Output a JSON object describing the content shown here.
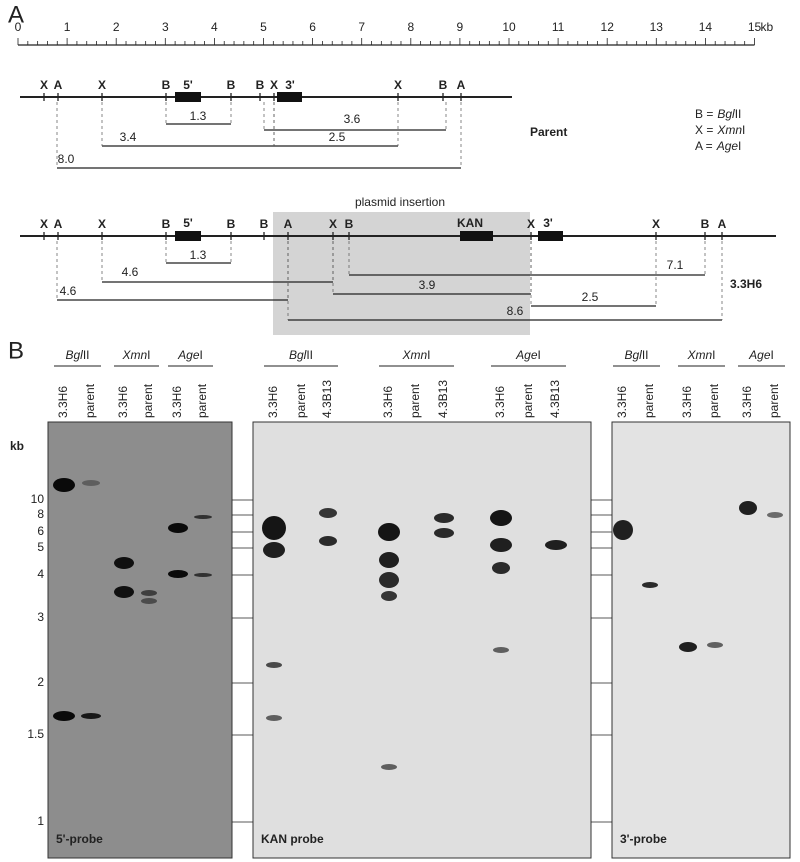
{
  "panel_a": {
    "label": "A",
    "scale": {
      "ticks": [
        0,
        1,
        2,
        3,
        4,
        5,
        6,
        7,
        8,
        9,
        10,
        11,
        12,
        13,
        14,
        15
      ],
      "unit": "kb"
    },
    "parent": {
      "name": "Parent",
      "sites": [
        "X",
        "A",
        "X",
        "B",
        "B",
        "B",
        "X",
        "X",
        "B",
        "A"
      ],
      "probes": [
        "5'",
        "3'"
      ],
      "fragments": [
        "1.3",
        "3.6",
        "3.4",
        "2.5",
        "8.0"
      ]
    },
    "legend": [
      {
        "key": "B =",
        "italic": "Bgl",
        "roman": "II"
      },
      {
        "key": "X =",
        "italic": "Xmn",
        "roman": "I"
      },
      {
        "key": "A =",
        "italic": "Age",
        "roman": "I"
      }
    ],
    "mutant": {
      "name": "3.3H6",
      "insertion": "plasmid insertion",
      "sites": [
        "X",
        "A",
        "X",
        "B",
        "B",
        "B",
        "A",
        "X",
        "B",
        "X",
        "X",
        "B",
        "A"
      ],
      "probes": [
        "5'",
        "KAN",
        "3'"
      ],
      "fragments": [
        "1.3",
        "7.1",
        "4.6",
        "3.9",
        "4.6",
        "2.5",
        "8.6"
      ]
    }
  },
  "panel_b": {
    "label": "B",
    "size_unit": "kb",
    "sizes": [
      10,
      8,
      6,
      5,
      4,
      3,
      2,
      1.5,
      1
    ],
    "blots": [
      {
        "probe": "5'-probe",
        "groups": [
          {
            "italic": "Bgl",
            "roman": "II",
            "lanes": [
              "3.3H6",
              "parent"
            ]
          },
          {
            "italic": "Xmn",
            "roman": "I",
            "lanes": [
              "3.3H6",
              "parent"
            ]
          },
          {
            "italic": "Age",
            "roman": "I",
            "lanes": [
              "3.3H6",
              "parent"
            ]
          }
        ]
      },
      {
        "probe": "KAN probe",
        "groups": [
          {
            "italic": "Bgl",
            "roman": "II",
            "lanes": [
              "3.3H6",
              "parent",
              "4.3B13"
            ]
          },
          {
            "italic": "Xmn",
            "roman": "I",
            "lanes": [
              "3.3H6",
              "parent",
              "4.3B13"
            ]
          },
          {
            "italic": "Age",
            "roman": "I",
            "lanes": [
              "3.3H6",
              "parent",
              "4.3B13"
            ]
          }
        ]
      },
      {
        "probe": "3'-probe",
        "groups": [
          {
            "italic": "Bgl",
            "roman": "II",
            "lanes": [
              "3.3H6",
              "parent"
            ]
          },
          {
            "italic": "Xmn",
            "roman": "I",
            "lanes": [
              "3.3H6",
              "parent"
            ]
          },
          {
            "italic": "Age",
            "roman": "I",
            "lanes": [
              "3.3H6",
              "parent"
            ]
          }
        ]
      }
    ]
  }
}
